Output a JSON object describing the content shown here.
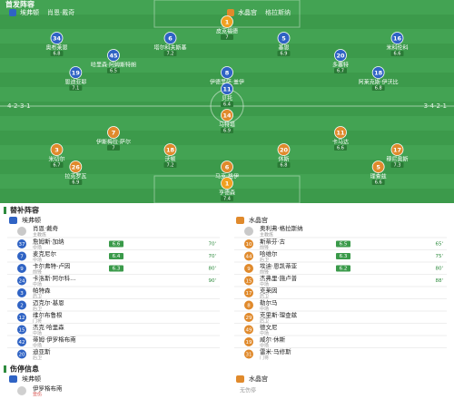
{
  "header": {
    "title": "首发阵容"
  },
  "home": {
    "name": "埃弗顿",
    "coach": "肖恩·戴奇",
    "formation": "4-2-3-1",
    "color": "#2f63c4",
    "gk_color": "#f0a020",
    "lines": [
      [
        {
          "num": 1,
          "name": "皮克福德",
          "rating": 7.0
        }
      ],
      [
        {
          "num": 34,
          "name": "奥布莱恩",
          "rating": 6.8
        },
        {
          "num": 6,
          "name": "塔尔科夫斯基",
          "rating": 7.2
        },
        {
          "num": 5,
          "name": "基恩",
          "rating": 6.9
        },
        {
          "num": 16,
          "name": "米科伦科",
          "rating": 6.6
        }
      ],
      [
        {
          "num": 45,
          "name": "哈里森·阿姆斯特朗",
          "rating": 6.5
        },
        {
          "num": 20,
          "name": "多塞特",
          "rating": 6.7
        }
      ],
      [
        {
          "num": 19,
          "name": "恩迪亚耶",
          "rating": 7.1
        },
        {
          "num": 8,
          "name": "伊德里萨·盖伊",
          "rating": 6.9
        },
        {
          "num": 18,
          "name": "阿莱克斯·伊沃比",
          "rating": 6.8
        }
      ],
      [
        {
          "num": 11,
          "name": "贝托",
          "rating": 6.4
        }
      ]
    ]
  },
  "away": {
    "name": "水晶宫",
    "coach": "格拉斯纳",
    "formation": "3-4-2-1",
    "color": "#e08a2c",
    "gk_color": "#f0a020",
    "lines": [
      [
        {
          "num": 14,
          "name": "马特塔",
          "rating": 6.9
        }
      ],
      [
        {
          "num": 7,
          "name": "伊斯梅拉·萨尔",
          "rating": 7.0
        },
        {
          "num": 11,
          "name": "卡马达",
          "rating": 6.6
        }
      ],
      [
        {
          "num": 3,
          "name": "米切尔",
          "rating": 6.7
        },
        {
          "num": 18,
          "name": "沃顿",
          "rating": 7.2
        },
        {
          "num": 20,
          "name": "休斯",
          "rating": 6.8
        },
        {
          "num": 17,
          "name": "穆尼奥斯",
          "rating": 7.3
        }
      ],
      [
        {
          "num": 26,
          "name": "拉克罗瓦",
          "rating": 6.9
        },
        {
          "num": 6,
          "name": "马克·格伊",
          "rating": 7.1
        },
        {
          "num": 5,
          "name": "理查兹",
          "rating": 6.6
        }
      ],
      [
        {
          "num": 1,
          "name": "亨德森",
          "rating": 7.4
        }
      ]
    ]
  },
  "subs": {
    "title": "替补阵容",
    "home": {
      "name": "埃弗顿",
      "coach": {
        "name": "肖恩·戴奇",
        "role": "主教练"
      },
      "players": [
        {
          "num": 37,
          "name": "詹姆斯·加纳",
          "pos": "中场",
          "rating": 6.6,
          "minute": "70'"
        },
        {
          "num": 7,
          "name": "麦克尼尔",
          "pos": "中场",
          "rating": 6.4,
          "minute": "70'"
        },
        {
          "num": 9,
          "name": "卡尔弗特-卢因",
          "pos": "前锋",
          "rating": 6.3,
          "minute": "80'"
        },
        {
          "num": 24,
          "name": "卡洛斯·阿尔科...",
          "pos": "中场",
          "minute": "90'"
        },
        {
          "num": 3,
          "name": "帕特森",
          "pos": "后卫"
        },
        {
          "num": 2,
          "name": "迈克尔·基恩",
          "pos": "后卫"
        },
        {
          "num": 12,
          "name": "维尔布鲁根",
          "pos": "门将"
        },
        {
          "num": 15,
          "name": "杰克·哈里森",
          "pos": "中场"
        },
        {
          "num": 42,
          "name": "蒂姆·伊罗格布南",
          "pos": "中场"
        },
        {
          "num": 20,
          "name": "迪亚斯",
          "pos": "后卫"
        }
      ]
    },
    "away": {
      "name": "水晶宫",
      "coach": {
        "name": "奥利弗·格拉斯纳",
        "role": "主教练"
      },
      "players": [
        {
          "num": 10,
          "name": "斯蒂芬·古",
          "pos": "前锋",
          "rating": 6.5,
          "minute": "65'"
        },
        {
          "num": 44,
          "name": "哈维尔",
          "pos": "后卫",
          "rating": 6.3,
          "minute": "75'"
        },
        {
          "num": 9,
          "name": "埃迪·恩凯蒂亚",
          "pos": "前锋",
          "rating": 6.2,
          "minute": "80'"
        },
        {
          "num": 15,
          "name": "杰弗里·施卢普",
          "pos": "中场",
          "minute": "88'"
        },
        {
          "num": 17,
          "name": "克莱因",
          "pos": "后卫"
        },
        {
          "num": 8,
          "name": "勒尔马",
          "pos": "中场"
        },
        {
          "num": 29,
          "name": "克里斯·理查兹",
          "pos": "后卫"
        },
        {
          "num": 49,
          "name": "德文尼",
          "pos": "中场"
        },
        {
          "num": 19,
          "name": "威尔·休斯",
          "pos": "中场"
        },
        {
          "num": 31,
          "name": "雷米·马修斯",
          "pos": "门将"
        }
      ]
    }
  },
  "injuries": {
    "title": "伤停信息",
    "home": {
      "name": "埃弗顿",
      "players": [
        {
          "name": "伊罗格布南",
          "status": "受伤"
        }
      ]
    },
    "away": {
      "name": "水晶宫",
      "note": "无伤停"
    }
  }
}
